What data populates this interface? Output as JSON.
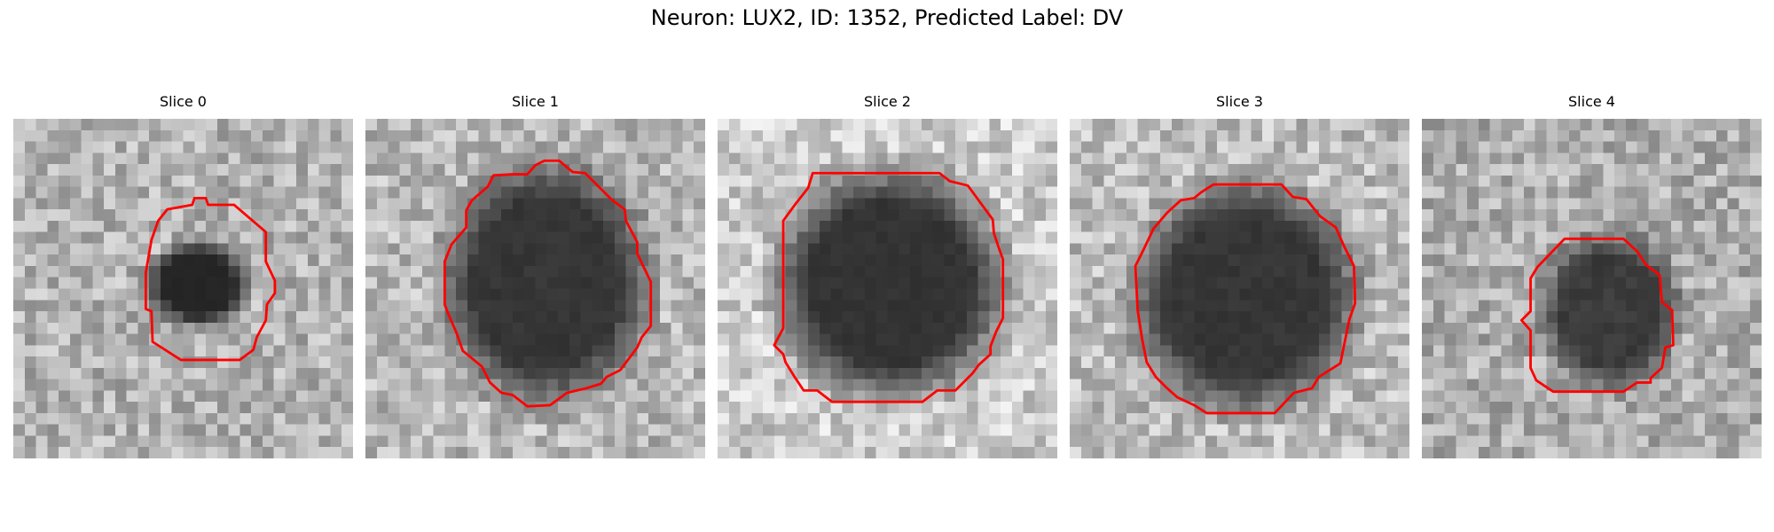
{
  "figure": {
    "title": "Neuron: LUX2, ID: 1352, Predicted Label: DV"
  },
  "contour_color": "#ff0000",
  "panels": [
    {
      "title": "Slice 0"
    },
    {
      "title": "Slice 1"
    },
    {
      "title": "Slice 2"
    },
    {
      "title": "Slice 3"
    },
    {
      "title": "Slice 4"
    }
  ]
}
